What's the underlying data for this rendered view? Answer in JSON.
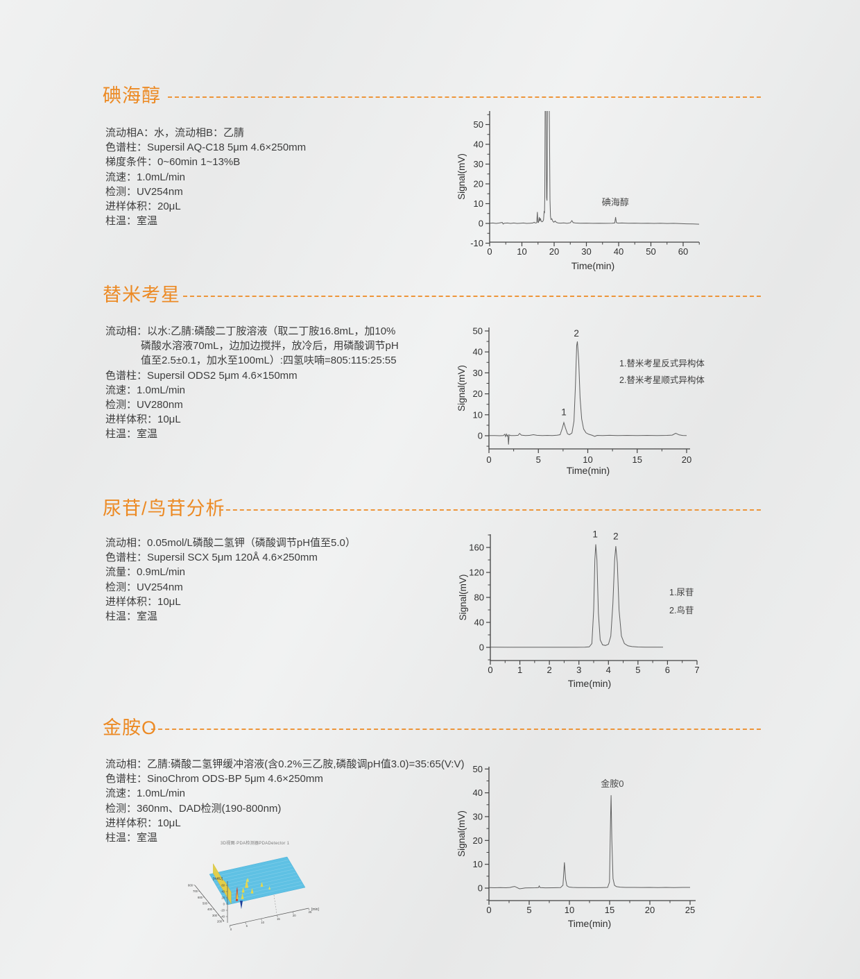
{
  "sections": [
    {
      "title": "碘海醇",
      "specs": [
        {
          "text": "流动相A：水，流动相B：乙腈"
        },
        {
          "text": "色谱柱：Supersil AQ-C18 5μm 4.6×250mm"
        },
        {
          "text": "梯度条件：0~60min 1~13%B"
        },
        {
          "text": "流速：1.0mL/min"
        },
        {
          "text": "检测：UV254nm"
        },
        {
          "text": "进样体积：20μL"
        },
        {
          "text": "柱温：室温"
        }
      ]
    },
    {
      "title": "替米考星",
      "specs": [
        {
          "text": "流动相：以水:乙腈:磷酸二丁胺溶液（取二丁胺16.8mL，加10%"
        },
        {
          "text": "磷酸水溶液70mL，边加边搅拌，放冷后，用磷酸调节pH",
          "indent": true
        },
        {
          "text": "值至2.5±0.1，加水至100mL）:四氢呋喃=805:115:25:55",
          "indent": true
        },
        {
          "text": "色谱柱：Supersil ODS2 5μm 4.6×150mm"
        },
        {
          "text": "流速：1.0mL/min"
        },
        {
          "text": "检测：UV280nm"
        },
        {
          "text": "进样体积：10μL"
        },
        {
          "text": "柱温：室温"
        }
      ]
    },
    {
      "title": "尿苷/鸟苷分析",
      "specs": [
        {
          "text": "流动相：0.05mol/L磷酸二氢钾（磷酸调节pH值至5.0）"
        },
        {
          "text": "色谱柱：Supersil SCX 5μm 120Å 4.6×250mm"
        },
        {
          "text": "流量：0.9mL/min"
        },
        {
          "text": "检测：UV254nm"
        },
        {
          "text": "进样体积：10μL"
        },
        {
          "text": "柱温：室温"
        }
      ]
    },
    {
      "title": "金胺O",
      "caption": "3D视图·PDA检测器PDADetector 1",
      "specs": [
        {
          "text": "流动相：乙腈:磷酸二氢钾缓冲溶液(含0.2%三乙胺,磷酸调pH值3.0)=35:65(V:V)"
        },
        {
          "text": "色谱柱：SinoChrom ODS-BP 5μm 4.6×250mm"
        },
        {
          "text": "流速：1.0mL/min"
        },
        {
          "text": "检测：360nm、DAD检测(190-800nm)"
        },
        {
          "text": "进样体积：10μL"
        },
        {
          "text": "柱温：室温"
        }
      ]
    }
  ],
  "chart_data": [
    {
      "name": "iohexol-chromatogram",
      "type": "line",
      "xlabel": "Time(min)",
      "ylabel": "Signal(mV)",
      "xlim": [
        0,
        65.5
      ],
      "ylim": [
        -10,
        56.8
      ],
      "xticks": [
        0,
        10,
        20,
        30,
        40,
        50,
        60
      ],
      "yticks": [
        -10,
        0,
        10,
        20,
        30,
        40,
        50
      ],
      "annotations": [
        {
          "text": "碘海醇",
          "t": 34.8,
          "mv": 9.2,
          "anchor": "start"
        }
      ],
      "peak_labels": [],
      "legend": null,
      "points": [
        [
          0,
          0.1
        ],
        [
          1,
          0.2
        ],
        [
          2,
          0
        ],
        [
          3,
          0.2
        ],
        [
          3.9,
          0.5
        ],
        [
          4.2,
          -0.3
        ],
        [
          4.5,
          0.1
        ],
        [
          5.5,
          0.2
        ],
        [
          6.5,
          0
        ],
        [
          7.5,
          0.2
        ],
        [
          8.5,
          0
        ],
        [
          9.5,
          0.1
        ],
        [
          10.5,
          0.2
        ],
        [
          11.5,
          0
        ],
        [
          12.5,
          0.1
        ],
        [
          13.4,
          0.2
        ],
        [
          13.8,
          0.6
        ],
        [
          14.1,
          0.2
        ],
        [
          14.6,
          0.3
        ],
        [
          14.8,
          5.8
        ],
        [
          14.95,
          0.6
        ],
        [
          15.15,
          0.5
        ],
        [
          15.4,
          3.2
        ],
        [
          15.55,
          1.1
        ],
        [
          15.75,
          2.6
        ],
        [
          15.95,
          1.3
        ],
        [
          16.15,
          0.8
        ],
        [
          16.45,
          1.0
        ],
        [
          16.7,
          1.8
        ],
        [
          16.9,
          6.3
        ],
        [
          17.0,
          5.2
        ],
        [
          17.1,
          14
        ],
        [
          17.2,
          60
        ],
        [
          17.45,
          80
        ],
        [
          17.55,
          38
        ],
        [
          17.68,
          13
        ],
        [
          17.78,
          11.5
        ],
        [
          17.88,
          28
        ],
        [
          17.98,
          70
        ],
        [
          18.35,
          80
        ],
        [
          18.55,
          46
        ],
        [
          18.7,
          12
        ],
        [
          18.85,
          3.8
        ],
        [
          19.0,
          2.0
        ],
        [
          19.3,
          2.3
        ],
        [
          19.6,
          1.1
        ],
        [
          19.9,
          0.6
        ],
        [
          20.3,
          1.2
        ],
        [
          20.7,
          0.5
        ],
        [
          21.3,
          0.2
        ],
        [
          22,
          0.15
        ],
        [
          23,
          0.25
        ],
        [
          24,
          0.05
        ],
        [
          25,
          0.3
        ],
        [
          25.5,
          1.4
        ],
        [
          25.9,
          0.4
        ],
        [
          26.6,
          0.2
        ],
        [
          28,
          0.1
        ],
        [
          30,
          0.15
        ],
        [
          32,
          0.05
        ],
        [
          34,
          0.12
        ],
        [
          36,
          0.05
        ],
        [
          38,
          0.1
        ],
        [
          38.8,
          0.25
        ],
        [
          39.05,
          3.2
        ],
        [
          39.3,
          0.4
        ],
        [
          39.8,
          0.15
        ],
        [
          41,
          0.2
        ],
        [
          43,
          0.1
        ],
        [
          45,
          0.15
        ],
        [
          47,
          0.05
        ],
        [
          49,
          0.1
        ],
        [
          51,
          0
        ],
        [
          53,
          0.1
        ],
        [
          55,
          -0.05
        ],
        [
          57,
          0.05
        ],
        [
          59,
          -0.1
        ],
        [
          61,
          -0.2
        ],
        [
          63,
          -0.25
        ],
        [
          65,
          -0.4
        ]
      ]
    },
    {
      "name": "tilmicosin-chromatogram",
      "type": "line",
      "xlabel": "Time(min)",
      "ylabel": "Signal(mV)",
      "xlim": [
        0,
        20.35
      ],
      "ylim": [
        -6.3,
        51.5
      ],
      "xticks": [
        0,
        5,
        10,
        15,
        20
      ],
      "yticks": [
        0,
        10,
        20,
        30,
        40,
        50
      ],
      "annotations": [],
      "peak_labels": [
        {
          "text": "1",
          "t": 7.58,
          "mv": 9.8
        },
        {
          "text": "2",
          "t": 8.85,
          "mv": 47.3
        }
      ],
      "legend": {
        "lines": [
          "1.替米考星反式异构体",
          "2.替米考星顺式异构体"
        ]
      },
      "points": [
        [
          0,
          0.05
        ],
        [
          0.6,
          0.1
        ],
        [
          1.1,
          0
        ],
        [
          1.45,
          0.1
        ],
        [
          1.6,
          0.7
        ],
        [
          1.68,
          -0.4
        ],
        [
          1.76,
          0.8
        ],
        [
          1.84,
          -0.2
        ],
        [
          1.92,
          0.3
        ],
        [
          1.98,
          -4.2
        ],
        [
          2.04,
          0.4
        ],
        [
          2.2,
          0.1
        ],
        [
          2.6,
          0.05
        ],
        [
          2.95,
          0.2
        ],
        [
          3.1,
          1.1
        ],
        [
          3.28,
          0.3
        ],
        [
          3.7,
          0.1
        ],
        [
          4.1,
          0.15
        ],
        [
          4.5,
          0.5
        ],
        [
          4.85,
          0.2
        ],
        [
          5.4,
          0.1
        ],
        [
          5.9,
          0.15
        ],
        [
          6.4,
          0.1
        ],
        [
          6.9,
          0.25
        ],
        [
          7.2,
          0.5
        ],
        [
          7.42,
          3.5
        ],
        [
          7.58,
          6.3
        ],
        [
          7.75,
          3.6
        ],
        [
          7.95,
          0.9
        ],
        [
          8.15,
          0.5
        ],
        [
          8.4,
          1.3
        ],
        [
          8.6,
          7
        ],
        [
          8.75,
          24
        ],
        [
          8.88,
          43
        ],
        [
          8.95,
          45
        ],
        [
          9.08,
          36
        ],
        [
          9.22,
          18
        ],
        [
          9.38,
          8
        ],
        [
          9.58,
          3.2
        ],
        [
          9.82,
          1.4
        ],
        [
          10.1,
          0.7
        ],
        [
          10.45,
          0.2
        ],
        [
          10.7,
          -0.3
        ],
        [
          10.95,
          0.15
        ],
        [
          11.5,
          0.1
        ],
        [
          12.2,
          0.2
        ],
        [
          13,
          0.1
        ],
        [
          14,
          0.18
        ],
        [
          15,
          0.1
        ],
        [
          16,
          0.15
        ],
        [
          17,
          0.1
        ],
        [
          18,
          0.18
        ],
        [
          18.55,
          0.3
        ],
        [
          18.9,
          1.2
        ],
        [
          19.25,
          0.4
        ],
        [
          19.6,
          0.12
        ],
        [
          20,
          0.05
        ]
      ]
    },
    {
      "name": "uridine-guanosine-chromatogram",
      "type": "line",
      "xlabel": "Time(min)",
      "ylabel": "Signal(mV)",
      "xlim": [
        0,
        7
      ],
      "ylim": [
        -21,
        181
      ],
      "xticks": [
        0,
        1,
        2,
        3,
        4,
        5,
        6,
        7
      ],
      "yticks": [
        0,
        40,
        80,
        120,
        160
      ],
      "annotations": [],
      "peak_labels": [
        {
          "text": "1",
          "t": 3.55,
          "mv": 176
        },
        {
          "text": "2",
          "t": 4.25,
          "mv": 173
        }
      ],
      "legend": {
        "lines": [
          "1.尿苷",
          "2.鸟苷"
        ]
      },
      "points": [
        [
          0,
          0.2
        ],
        [
          0.6,
          0.1
        ],
        [
          1.2,
          0.15
        ],
        [
          1.8,
          0.1
        ],
        [
          2.4,
          0.15
        ],
        [
          2.9,
          0.1
        ],
        [
          3.2,
          0.3
        ],
        [
          3.35,
          0.8
        ],
        [
          3.44,
          6
        ],
        [
          3.5,
          60
        ],
        [
          3.54,
          140
        ],
        [
          3.57,
          165
        ],
        [
          3.61,
          140
        ],
        [
          3.66,
          55
        ],
        [
          3.72,
          12
        ],
        [
          3.8,
          4
        ],
        [
          3.9,
          3
        ],
        [
          4.0,
          5
        ],
        [
          4.08,
          18
        ],
        [
          4.15,
          70
        ],
        [
          4.21,
          140
        ],
        [
          4.25,
          162
        ],
        [
          4.3,
          135
        ],
        [
          4.36,
          60
        ],
        [
          4.44,
          18
        ],
        [
          4.54,
          6
        ],
        [
          4.66,
          2.5
        ],
        [
          4.8,
          1.2
        ],
        [
          5.0,
          0.6
        ],
        [
          5.25,
          0.3
        ],
        [
          5.5,
          0.2
        ],
        [
          5.85,
          0.3
        ]
      ]
    },
    {
      "name": "auramine-o-chromatogram",
      "type": "line",
      "xlabel": "Time(min)",
      "ylabel": "Signal(mV)",
      "xlim": [
        0,
        25.7
      ],
      "ylim": [
        -5.2,
        51
      ],
      "xticks": [
        0,
        5,
        10,
        15,
        20,
        25
      ],
      "yticks": [
        0,
        10,
        20,
        30,
        40,
        50
      ],
      "annotations": [
        {
          "text": "金胺0",
          "t": 13.9,
          "mv": 42.5,
          "anchor": "start"
        }
      ],
      "peak_labels": [],
      "legend": null,
      "points": [
        [
          0,
          0.2
        ],
        [
          0.7,
          0.15
        ],
        [
          1.4,
          0.2
        ],
        [
          2.1,
          0.15
        ],
        [
          2.6,
          0.25
        ],
        [
          2.9,
          0.5
        ],
        [
          3.2,
          0.7
        ],
        [
          3.5,
          0.2
        ],
        [
          3.8,
          -0.3
        ],
        [
          4.1,
          -0.15
        ],
        [
          4.5,
          0.1
        ],
        [
          5.2,
          0.12
        ],
        [
          5.8,
          0.15
        ],
        [
          6.15,
          0.2
        ],
        [
          6.25,
          0.9
        ],
        [
          6.35,
          0.2
        ],
        [
          7,
          0.12
        ],
        [
          8,
          0.15
        ],
        [
          8.9,
          0.2
        ],
        [
          9.2,
          1.2
        ],
        [
          9.38,
          10.8
        ],
        [
          9.52,
          4
        ],
        [
          9.68,
          1
        ],
        [
          9.95,
          0.45
        ],
        [
          10.4,
          0.3
        ],
        [
          11,
          0.22
        ],
        [
          12,
          0.2
        ],
        [
          13,
          0.18
        ],
        [
          14,
          0.22
        ],
        [
          14.75,
          0.3
        ],
        [
          14.98,
          2.5
        ],
        [
          15.12,
          30
        ],
        [
          15.18,
          39
        ],
        [
          15.28,
          20
        ],
        [
          15.42,
          4
        ],
        [
          15.6,
          1.2
        ],
        [
          15.85,
          0.6
        ],
        [
          16.3,
          0.4
        ],
        [
          17,
          0.3
        ],
        [
          18,
          0.28
        ],
        [
          19,
          0.25
        ],
        [
          20,
          0.3
        ],
        [
          21,
          0.22
        ],
        [
          22,
          0.28
        ],
        [
          23,
          0.22
        ],
        [
          24,
          0.28
        ],
        [
          25,
          0.3
        ]
      ]
    },
    {
      "name": "auramine-dad-3d-spectrum",
      "type": "3d-surface",
      "zlabel": "[mAU]",
      "xlabel": "[min]",
      "zticks": [
        60,
        40,
        20,
        0,
        -20,
        -40
      ],
      "wavelength_ticks_nm": [
        800,
        700,
        600,
        500,
        400,
        300,
        200
      ],
      "time_ticks_min": [
        0,
        5,
        10,
        15,
        20,
        25
      ],
      "surface_color": "#5fc1e4",
      "peaks": [
        {
          "type": "ridge",
          "t": 1.2,
          "nm_from": 200,
          "nm_to": 800,
          "h": 14,
          "c": "#e2ce4a"
        },
        {
          "t": 3.3,
          "nm": 230,
          "h": 20,
          "w": 1.6,
          "c": "#d43b25"
        },
        {
          "t": 4.1,
          "nm": 300,
          "h": 15,
          "w": 1.4,
          "c": "#d43b25"
        },
        {
          "t": 3.7,
          "nm": 260,
          "h": 12,
          "w": 1.5,
          "c": "#e6c23c"
        },
        {
          "t": 5.2,
          "nm": 240,
          "h": 9,
          "w": 2,
          "c": "#e6d84a"
        },
        {
          "t": 6.5,
          "nm": 350,
          "h": 8,
          "w": 2,
          "c": "#e6d84a"
        },
        {
          "t": 8.3,
          "nm": 420,
          "h": 13,
          "w": 2.5,
          "c": "#e8d54f"
        },
        {
          "t": 8.9,
          "nm": 300,
          "h": 8,
          "w": 2,
          "c": "#e6d84a"
        },
        {
          "t": 9.6,
          "nm": 520,
          "h": 6,
          "w": 2,
          "c": "#dde06a"
        },
        {
          "t": 12.8,
          "nm": 380,
          "h": 7,
          "w": 2,
          "c": "#e6d84a"
        },
        {
          "t": 14.5,
          "nm": 300,
          "h": 5,
          "w": 1.5,
          "c": "#dde06a"
        },
        {
          "t": 4.6,
          "nm": 215,
          "h": -12,
          "w": 2,
          "c": "#1d3f9a"
        }
      ]
    }
  ],
  "colors": {
    "accent_orange": "#ec8a24",
    "dash_orange": "#ee9130",
    "curve_gray": "#5f5f5f",
    "axis_gray": "#414141"
  }
}
